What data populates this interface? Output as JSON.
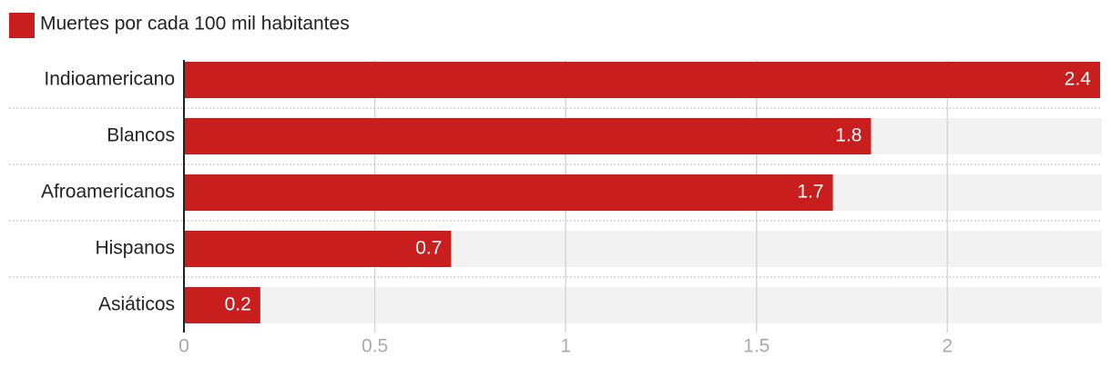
{
  "chart_data": {
    "type": "bar",
    "orientation": "horizontal",
    "categories": [
      "Indioamericano",
      "Blancos",
      "Afroamericanos",
      "Hispanos",
      "Asiáticos"
    ],
    "series": [
      {
        "name": "Muertes por cada 100 mil habitantes",
        "color": "#c81e1e",
        "values": [
          2.4,
          1.8,
          1.7,
          0.7,
          0.2
        ]
      }
    ],
    "xlim": [
      0,
      2.4
    ],
    "xticks": [
      0,
      0.5,
      1,
      1.5,
      2
    ],
    "grid": true,
    "legend": "top-left"
  }
}
